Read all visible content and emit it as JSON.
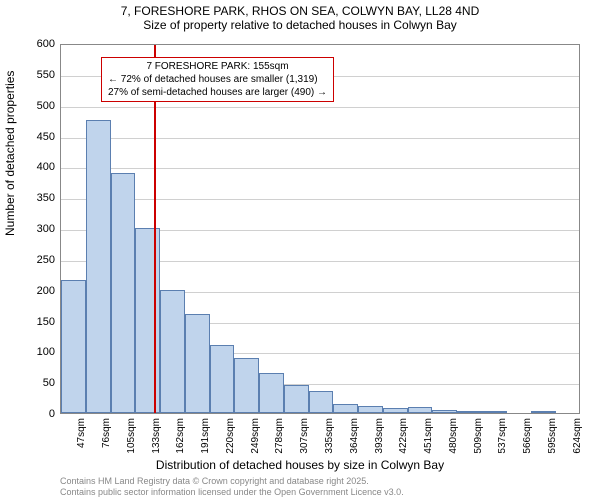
{
  "title_line1": "7, FORESHORE PARK, RHOS ON SEA, COLWYN BAY, LL28 4ND",
  "title_line2": "Size of property relative to detached houses in Colwyn Bay",
  "y_axis_title": "Number of detached properties",
  "x_axis_title": "Distribution of detached houses by size in Colwyn Bay",
  "chart": {
    "type": "histogram",
    "bar_fill": "#c0d4ec",
    "bar_border": "#5b7fb0",
    "grid_color": "#d0d0d0",
    "plot_border": "#888888",
    "background": "#ffffff",
    "ylim": [
      0,
      600
    ],
    "y_ticks": [
      0,
      50,
      100,
      150,
      200,
      250,
      300,
      350,
      400,
      450,
      500,
      550,
      600
    ],
    "x_labels": [
      "47sqm",
      "76sqm",
      "105sqm",
      "133sqm",
      "162sqm",
      "191sqm",
      "220sqm",
      "249sqm",
      "278sqm",
      "307sqm",
      "335sqm",
      "364sqm",
      "393sqm",
      "422sqm",
      "451sqm",
      "480sqm",
      "509sqm",
      "537sqm",
      "566sqm",
      "595sqm",
      "624sqm"
    ],
    "values": [
      215,
      475,
      390,
      300,
      200,
      160,
      110,
      90,
      65,
      45,
      35,
      15,
      12,
      8,
      10,
      5,
      3,
      2,
      0,
      1,
      0
    ],
    "marker_index": 3.75,
    "marker_color": "#cc0000"
  },
  "annotation": {
    "line1": "7 FORESHORE PARK: 155sqm",
    "line2": "← 72% of detached houses are smaller (1,319)",
    "line3": "27% of semi-detached houses are larger (490) →",
    "border_color": "#cc0000"
  },
  "footer_line1": "Contains HM Land Registry data © Crown copyright and database right 2025.",
  "footer_line2": "Contains public sector information licensed under the Open Government Licence v3.0."
}
